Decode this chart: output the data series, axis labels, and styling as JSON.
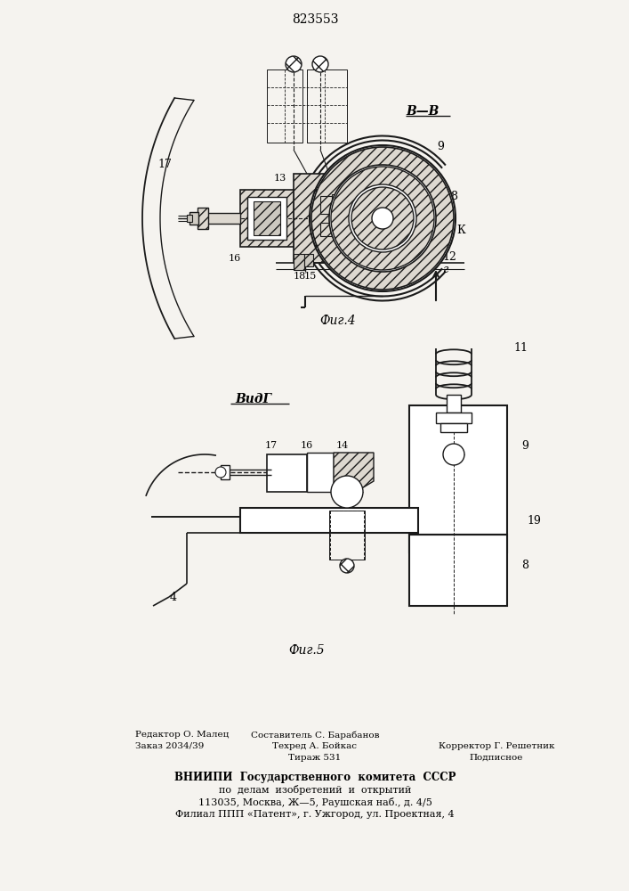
{
  "title": "823553",
  "fig4_label": "Фиг.4",
  "fig5_label": "Фиг.5",
  "view_bb": "В—В",
  "view_g": "ВидГ",
  "arrow_g": "г",
  "bg_color": "#f5f3ef",
  "line_color": "#1a1a1a",
  "footer_left1": "Редактор О. Малец",
  "footer_left2": "Заказ 2034/39",
  "footer_c1": "Составитель С. Барабанов",
  "footer_c2": "Техред А. Бойкас",
  "footer_c3": "Тираж 531",
  "footer_r2": "Корректор Г. Решетник",
  "footer_r3": "Подписное",
  "footer_b1": "ВНИИПИ  Государственного  комитета  СССР",
  "footer_b2": "по  делам  изобретений  и  открытий",
  "footer_b3": "113035, Москва, Ж—5, Раушская наб., д. 4/5",
  "footer_b4": "Филиал ППП «Патент», г. Ужгород, ул. Проектная, 4"
}
